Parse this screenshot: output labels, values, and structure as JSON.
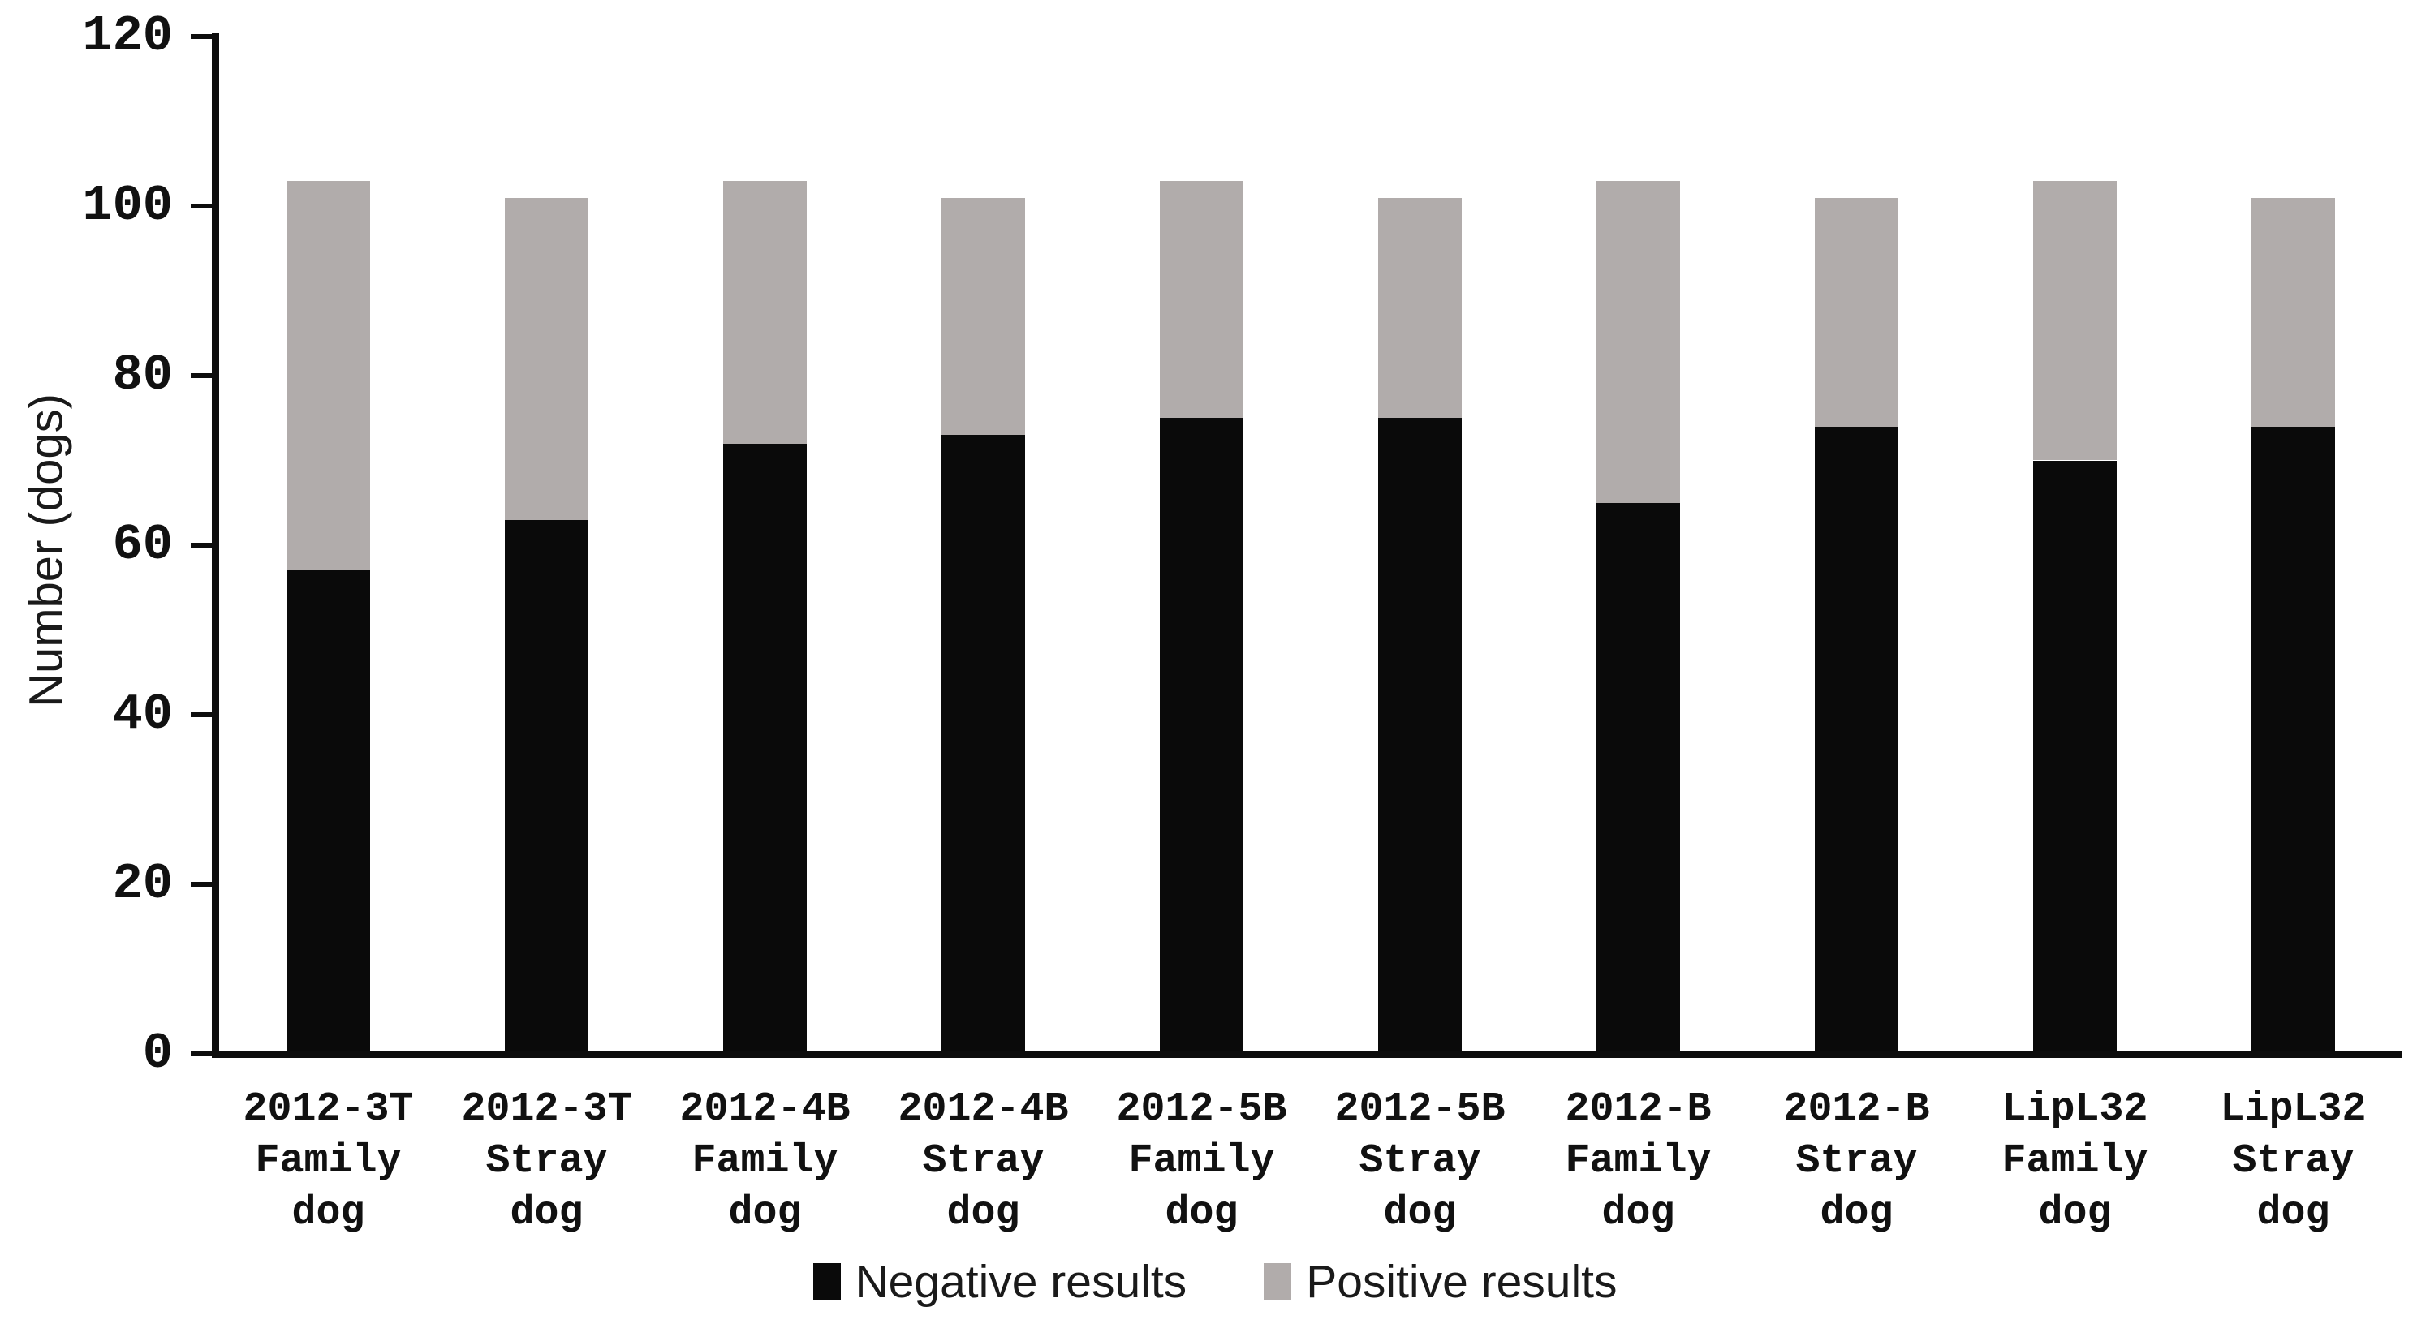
{
  "y_axis": {
    "title": "Number (dogs)",
    "tick_values": [
      0,
      20,
      40,
      60,
      80,
      100,
      120
    ]
  },
  "legend": {
    "items": [
      {
        "label": "Negative results",
        "color": "#0a0a0a"
      },
      {
        "label": "Positive results",
        "color": "#b1acab"
      }
    ]
  },
  "chart_data": {
    "type": "bar",
    "stacked": true,
    "title": "",
    "xlabel": "",
    "ylabel": "Number (dogs)",
    "ylim": [
      0,
      120
    ],
    "ytick_step": 20,
    "grid": false,
    "legend_position": "bottom",
    "categories": [
      [
        "2012-3T",
        "Family",
        "dog"
      ],
      [
        "2012-3T",
        "Stray",
        "dog"
      ],
      [
        "2012-4B",
        "Family",
        "dog"
      ],
      [
        "2012-4B",
        "Stray",
        "dog"
      ],
      [
        "2012-5B",
        "Family",
        "dog"
      ],
      [
        "2012-5B",
        "Stray",
        "dog"
      ],
      [
        "2012-B",
        "Family",
        "dog"
      ],
      [
        "2012-B",
        "Stray",
        "dog"
      ],
      [
        "LipL32",
        "Family",
        "dog"
      ],
      [
        "LipL32",
        "Stray",
        "dog"
      ]
    ],
    "series": [
      {
        "name": "Negative results",
        "color": "#0a0a0a",
        "values": [
          57,
          63,
          72,
          73,
          75,
          75,
          65,
          74,
          70,
          74
        ]
      },
      {
        "name": "Positive results",
        "color": "#b1acab",
        "values": [
          46,
          38,
          31,
          28,
          28,
          26,
          38,
          27,
          33,
          27
        ]
      }
    ],
    "bar_totals": [
      103,
      101,
      103,
      101,
      103,
      101,
      103,
      101,
      103,
      101
    ]
  }
}
